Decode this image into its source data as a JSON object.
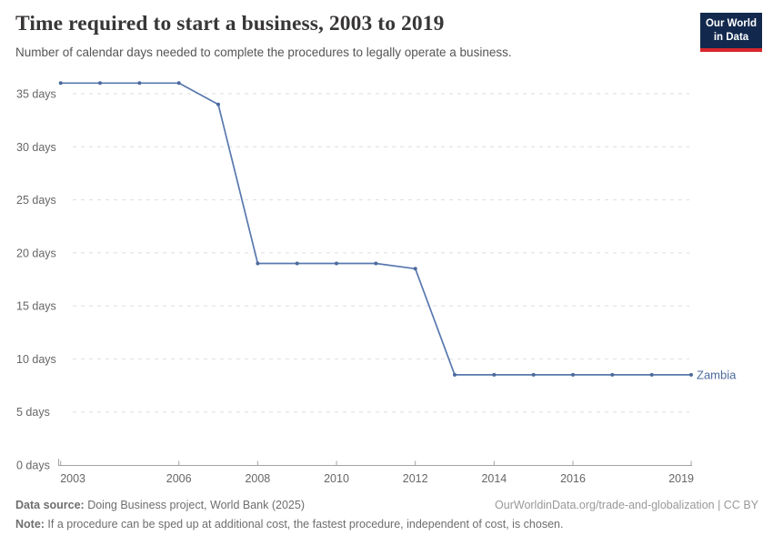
{
  "header": {
    "title": "Time required to start a business, 2003 to 2019",
    "subtitle": "Number of calendar days needed to complete the procedures to legally operate a business.",
    "logo": {
      "line1": "Our World",
      "line2": "in Data"
    }
  },
  "chart_data": {
    "type": "line",
    "title": "Time required to start a business, 2003 to 2019",
    "xlabel": "",
    "ylabel": "days",
    "x": [
      2003,
      2004,
      2005,
      2006,
      2007,
      2008,
      2009,
      2010,
      2011,
      2012,
      2013,
      2014,
      2015,
      2016,
      2017,
      2018,
      2019
    ],
    "series": [
      {
        "name": "Zambia",
        "values": [
          36,
          36,
          36,
          36,
          34,
          19,
          19,
          19,
          19,
          18.5,
          8.5,
          8.5,
          8.5,
          8.5,
          8.5,
          8.5,
          8.5
        ]
      }
    ],
    "xlim": [
      2003,
      2019
    ],
    "ylim": [
      0,
      36
    ],
    "x_tick_labels": [
      "2003",
      "2006",
      "2008",
      "2010",
      "2012",
      "2014",
      "2016",
      "2019"
    ],
    "y_ticks": [
      0,
      5,
      10,
      15,
      20,
      25,
      30,
      35
    ],
    "y_tick_suffix": " days",
    "grid": "horizontal-dashed",
    "legend_position": "end-of-line-label"
  },
  "footer": {
    "datasource_label": "Data source:",
    "datasource_text": " Doing Business project, World Bank (2025)",
    "link_text": "OurWorldinData.org/trade-and-globalization | CC BY",
    "note_label": "Note:",
    "note_text": " If a procedure can be sped up at additional cost, the fastest procedure, independent of cost, is chosen."
  },
  "colors": {
    "line": "#5878AE",
    "marker": "#4C6A9C",
    "entity_label": "#4C6A9C",
    "grid": "#DEDEDE",
    "axis": "#A3A3A3",
    "tick_label": "#666666",
    "title": "#383636",
    "subtitle": "#555555",
    "footer_text": "#6E6E6E",
    "footer_link": "#999999",
    "logo_bg": "#12294D",
    "logo_stripe": "#D8262C"
  }
}
